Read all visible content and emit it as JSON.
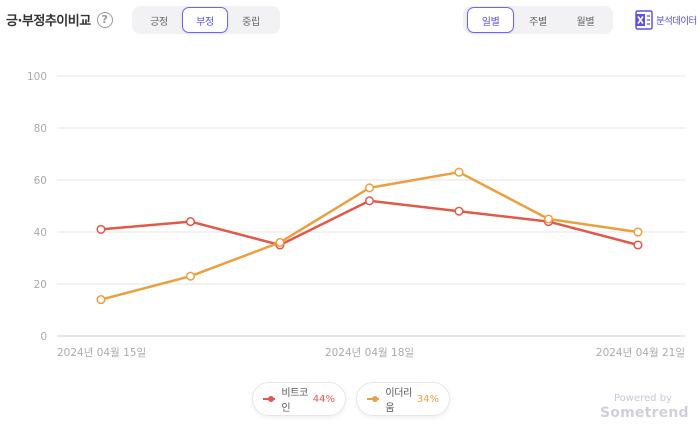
{
  "header": {
    "title": "긍·부정추이비교",
    "help_icon": "?",
    "sentiment_tabs": [
      "긍정",
      "부정",
      "중립"
    ],
    "sentiment_active": 1,
    "period_tabs": [
      "일별",
      "주별",
      "월별"
    ],
    "period_active": 0,
    "export_label": "분석데이터",
    "export_icon": "excel-icon"
  },
  "chart_data": {
    "type": "line",
    "x": [
      "2024-04-15",
      "2024-04-16",
      "2024-04-17",
      "2024-04-18",
      "2024-04-19",
      "2024-04-20",
      "2024-04-21"
    ],
    "x_tick_labels": [
      "2024년 04월 15일",
      "2024년 04월 18일",
      "2024년 04월 21일"
    ],
    "y_ticks": [
      0,
      20,
      40,
      60,
      80,
      100
    ],
    "ylim": [
      0,
      100
    ],
    "grid": true,
    "series": [
      {
        "name": "비트코인",
        "color": "#e05a4a",
        "values": [
          41,
          44,
          35,
          52,
          48,
          44,
          35
        ]
      },
      {
        "name": "이더리움",
        "color": "#eba040",
        "values": [
          14,
          23,
          36,
          57,
          63,
          45,
          40
        ]
      }
    ]
  },
  "legend": [
    {
      "name": "비트코인",
      "pct": "44%",
      "color": "#e05a4a"
    },
    {
      "name": "이더리움",
      "pct": "34%",
      "color": "#eba040"
    }
  ],
  "footer": {
    "powered": "Powered by",
    "brand": "Sometrend"
  }
}
